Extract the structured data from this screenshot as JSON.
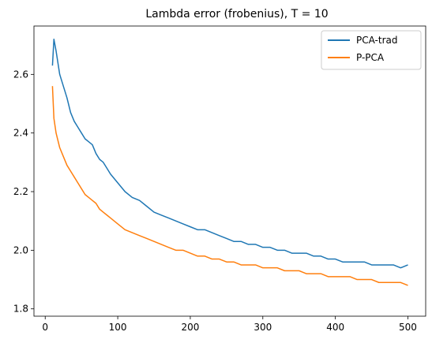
{
  "chart_data": {
    "type": "line",
    "title": "Lambda error (frobenius), T = 10",
    "xlabel": "",
    "ylabel": "",
    "xlim": [
      -15.5,
      524.5
    ],
    "ylim": [
      1.775,
      2.765
    ],
    "xticks": [
      0,
      100,
      200,
      300,
      400,
      500
    ],
    "yticks": [
      1.8,
      2.0,
      2.2,
      2.4,
      2.6
    ],
    "ytick_labels": [
      "1.8",
      "2.0",
      "2.2",
      "2.4",
      "2.6"
    ],
    "grid": false,
    "legend_position": "top-right",
    "series": [
      {
        "name": "PCA-trad",
        "color": "#1f77b4",
        "x": [
          10,
          12,
          15,
          20,
          25,
          30,
          35,
          40,
          45,
          50,
          55,
          60,
          65,
          70,
          75,
          80,
          85,
          90,
          100,
          110,
          120,
          130,
          140,
          150,
          160,
          170,
          180,
          190,
          200,
          210,
          220,
          230,
          240,
          250,
          260,
          270,
          280,
          290,
          300,
          310,
          320,
          330,
          340,
          350,
          360,
          370,
          380,
          390,
          400,
          410,
          420,
          430,
          440,
          450,
          460,
          470,
          480,
          490,
          500
        ],
        "y": [
          2.63,
          2.72,
          2.68,
          2.6,
          2.56,
          2.52,
          2.47,
          2.44,
          2.42,
          2.4,
          2.38,
          2.37,
          2.36,
          2.33,
          2.31,
          2.3,
          2.28,
          2.26,
          2.23,
          2.2,
          2.18,
          2.17,
          2.15,
          2.13,
          2.12,
          2.11,
          2.1,
          2.09,
          2.08,
          2.07,
          2.07,
          2.06,
          2.05,
          2.04,
          2.03,
          2.03,
          2.02,
          2.02,
          2.01,
          2.01,
          2.0,
          2.0,
          1.99,
          1.99,
          1.99,
          1.98,
          1.98,
          1.97,
          1.97,
          1.96,
          1.96,
          1.96,
          1.96,
          1.95,
          1.95,
          1.95,
          1.95,
          1.94,
          1.95
        ]
      },
      {
        "name": "P-PCA",
        "color": "#ff7f0e",
        "x": [
          10,
          12,
          15,
          20,
          25,
          30,
          35,
          40,
          45,
          50,
          55,
          60,
          65,
          70,
          75,
          80,
          85,
          90,
          100,
          110,
          120,
          130,
          140,
          150,
          160,
          170,
          180,
          190,
          200,
          210,
          220,
          230,
          240,
          250,
          260,
          270,
          280,
          290,
          300,
          310,
          320,
          330,
          340,
          350,
          360,
          370,
          380,
          390,
          400,
          410,
          420,
          430,
          440,
          450,
          460,
          470,
          480,
          490,
          500
        ],
        "y": [
          2.56,
          2.45,
          2.4,
          2.35,
          2.32,
          2.29,
          2.27,
          2.25,
          2.23,
          2.21,
          2.19,
          2.18,
          2.17,
          2.16,
          2.14,
          2.13,
          2.12,
          2.11,
          2.09,
          2.07,
          2.06,
          2.05,
          2.04,
          2.03,
          2.02,
          2.01,
          2.0,
          2.0,
          1.99,
          1.98,
          1.98,
          1.97,
          1.97,
          1.96,
          1.96,
          1.95,
          1.95,
          1.95,
          1.94,
          1.94,
          1.94,
          1.93,
          1.93,
          1.93,
          1.92,
          1.92,
          1.92,
          1.91,
          1.91,
          1.91,
          1.91,
          1.9,
          1.9,
          1.9,
          1.89,
          1.89,
          1.89,
          1.89,
          1.88
        ]
      }
    ]
  }
}
